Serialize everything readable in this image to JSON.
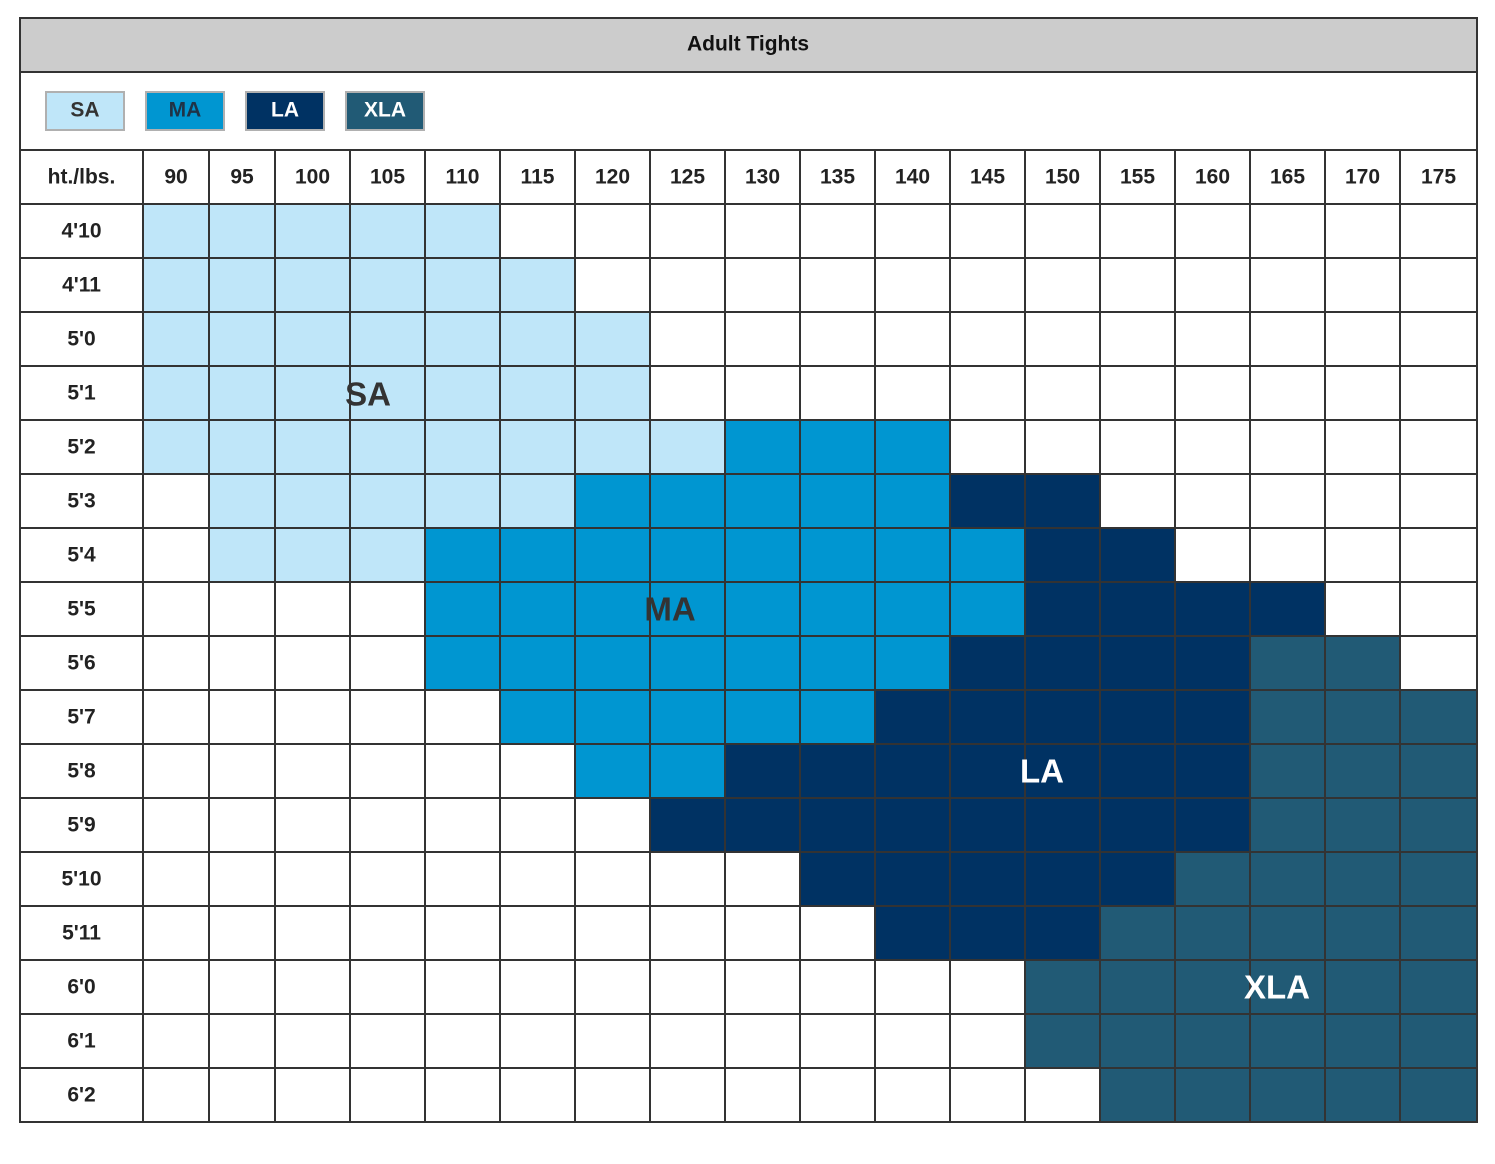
{
  "title": "Adult Tights",
  "legend": [
    {
      "label": "SA",
      "color": "#bfe6f9",
      "text_color": "#333333"
    },
    {
      "label": "MA",
      "color": "#0096d1",
      "text_color": "#1f3347"
    },
    {
      "label": "LA",
      "color": "#003263",
      "text_color": "#ffffff"
    },
    {
      "label": "XLA",
      "color": "#215a75",
      "text_color": "#ffffff"
    }
  ],
  "table": {
    "corner": "ht./lbs.",
    "weights": [
      "90",
      "95",
      "100",
      "105",
      "110",
      "115",
      "120",
      "125",
      "130",
      "135",
      "140",
      "145",
      "150",
      "155",
      "160",
      "165",
      "170",
      "175"
    ],
    "rows": [
      {
        "height": "4'10",
        "sizes": [
          "SA",
          "SA",
          "SA",
          "SA",
          "SA",
          null,
          null,
          null,
          null,
          null,
          null,
          null,
          null,
          null,
          null,
          null,
          null,
          null
        ]
      },
      {
        "height": "4'11",
        "sizes": [
          "SA",
          "SA",
          "SA",
          "SA",
          "SA",
          "SA",
          null,
          null,
          null,
          null,
          null,
          null,
          null,
          null,
          null,
          null,
          null,
          null
        ]
      },
      {
        "height": "5'0",
        "sizes": [
          "SA",
          "SA",
          "SA",
          "SA",
          "SA",
          "SA",
          "SA",
          null,
          null,
          null,
          null,
          null,
          null,
          null,
          null,
          null,
          null,
          null
        ]
      },
      {
        "height": "5'1",
        "sizes": [
          "SA",
          "SA",
          "SA",
          "SA",
          "SA",
          "SA",
          "SA",
          null,
          null,
          null,
          null,
          null,
          null,
          null,
          null,
          null,
          null,
          null
        ]
      },
      {
        "height": "5'2",
        "sizes": [
          "SA",
          "SA",
          "SA",
          "SA",
          "SA",
          "SA",
          "SA",
          "SA",
          "MA",
          "MA",
          "MA",
          null,
          null,
          null,
          null,
          null,
          null,
          null
        ]
      },
      {
        "height": "5'3",
        "sizes": [
          null,
          "SA",
          "SA",
          "SA",
          "SA",
          "SA",
          "MA",
          "MA",
          "MA",
          "MA",
          "MA",
          "LA",
          "LA",
          null,
          null,
          null,
          null,
          null
        ]
      },
      {
        "height": "5'4",
        "sizes": [
          null,
          "SA",
          "SA",
          "SA",
          "MA",
          "MA",
          "MA",
          "MA",
          "MA",
          "MA",
          "MA",
          "MA",
          "LA",
          "LA",
          null,
          null,
          null,
          null
        ]
      },
      {
        "height": "5'5",
        "sizes": [
          null,
          null,
          null,
          null,
          "MA",
          "MA",
          "MA",
          "MA",
          "MA",
          "MA",
          "MA",
          "MA",
          "LA",
          "LA",
          "LA",
          "LA",
          null,
          null
        ]
      },
      {
        "height": "5'6",
        "sizes": [
          null,
          null,
          null,
          null,
          "MA",
          "MA",
          "MA",
          "MA",
          "MA",
          "MA",
          "MA",
          "LA",
          "LA",
          "LA",
          "LA",
          "XLA",
          "XLA",
          null
        ]
      },
      {
        "height": "5'7",
        "sizes": [
          null,
          null,
          null,
          null,
          null,
          "MA",
          "MA",
          "MA",
          "MA",
          "MA",
          "LA",
          "LA",
          "LA",
          "LA",
          "LA",
          "XLA",
          "XLA",
          "XLA"
        ]
      },
      {
        "height": "5'8",
        "sizes": [
          null,
          null,
          null,
          null,
          null,
          null,
          "MA",
          "MA",
          "LA",
          "LA",
          "LA",
          "LA",
          "LA",
          "LA",
          "LA",
          "XLA",
          "XLA",
          "XLA"
        ]
      },
      {
        "height": "5'9",
        "sizes": [
          null,
          null,
          null,
          null,
          null,
          null,
          null,
          "LA",
          "LA",
          "LA",
          "LA",
          "LA",
          "LA",
          "LA",
          "LA",
          "XLA",
          "XLA",
          "XLA"
        ]
      },
      {
        "height": "5'10",
        "sizes": [
          null,
          null,
          null,
          null,
          null,
          null,
          null,
          null,
          null,
          "LA",
          "LA",
          "LA",
          "LA",
          "LA",
          "XLA",
          "XLA",
          "XLA",
          "XLA"
        ]
      },
      {
        "height": "5'11",
        "sizes": [
          null,
          null,
          null,
          null,
          null,
          null,
          null,
          null,
          null,
          null,
          "LA",
          "LA",
          "LA",
          "XLA",
          "XLA",
          "XLA",
          "XLA",
          "XLA"
        ]
      },
      {
        "height": "6'0",
        "sizes": [
          null,
          null,
          null,
          null,
          null,
          null,
          null,
          null,
          null,
          null,
          null,
          null,
          "XLA",
          "XLA",
          "XLA",
          "XLA",
          "XLA",
          "XLA"
        ]
      },
      {
        "height": "6'1",
        "sizes": [
          null,
          null,
          null,
          null,
          null,
          null,
          null,
          null,
          null,
          null,
          null,
          null,
          "XLA",
          "XLA",
          "XLA",
          "XLA",
          "XLA",
          "XLA"
        ]
      },
      {
        "height": "6'2",
        "sizes": [
          null,
          null,
          null,
          null,
          null,
          null,
          null,
          null,
          null,
          null,
          null,
          null,
          null,
          "XLA",
          "XLA",
          "XLA",
          "XLA",
          "XLA"
        ]
      }
    ]
  }
}
